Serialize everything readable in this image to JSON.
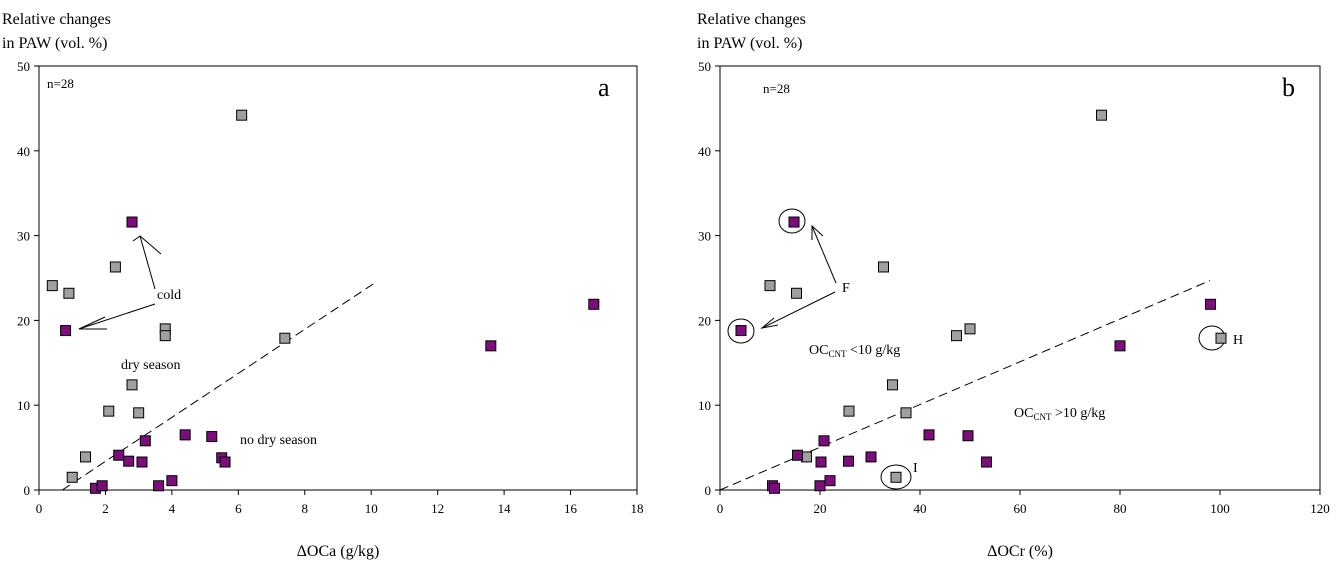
{
  "chart_data": [
    {
      "type": "scatter",
      "panel_letter": "a",
      "n_label": "n=28",
      "ylabel_lines": [
        "Relative changes",
        "in PAW (vol. %)"
      ],
      "xlabel": "ΔOCa (g/kg)",
      "xlim": [
        0,
        18
      ],
      "ylim": [
        0,
        50
      ],
      "xticks": [
        0,
        2,
        4,
        6,
        8,
        10,
        12,
        14,
        16,
        18
      ],
      "yticks": [
        0,
        10,
        20,
        30,
        40,
        50
      ],
      "grid": false,
      "series": [
        {
          "color": "#a0a0a0",
          "points": [
            [
              0.4,
              24.1
            ],
            [
              0.9,
              23.2
            ],
            [
              1.0,
              1.5
            ],
            [
              1.4,
              3.9
            ],
            [
              2.1,
              9.3
            ],
            [
              2.3,
              26.3
            ],
            [
              2.8,
              12.4
            ],
            [
              3.0,
              9.1
            ],
            [
              3.8,
              19.0
            ],
            [
              3.8,
              18.2
            ],
            [
              6.1,
              44.2
            ],
            [
              7.4,
              17.9
            ]
          ]
        },
        {
          "color": "#7b0e7b",
          "points": [
            [
              0.8,
              18.8
            ],
            [
              1.7,
              0.2
            ],
            [
              1.9,
              0.5
            ],
            [
              2.4,
              4.1
            ],
            [
              2.7,
              3.4
            ],
            [
              2.8,
              31.6
            ],
            [
              3.1,
              3.3
            ],
            [
              3.2,
              5.8
            ],
            [
              3.6,
              0.5
            ],
            [
              4.0,
              1.1
            ],
            [
              4.4,
              6.5
            ],
            [
              5.2,
              6.3
            ],
            [
              5.5,
              3.8
            ],
            [
              5.6,
              3.3
            ],
            [
              13.6,
              17.0
            ],
            [
              16.7,
              21.9
            ]
          ]
        }
      ],
      "dashed_line": [
        [
          0.7,
          0.0
        ],
        [
          10.1,
          24.4
        ]
      ],
      "annotations": [
        "cold",
        "dry season",
        "no dry season"
      ]
    },
    {
      "type": "scatter",
      "panel_letter": "b",
      "n_label": "n=28",
      "ylabel_lines": [
        "Relative changes",
        "in PAW (vol. %)"
      ],
      "xlabel": "ΔOCr (%)",
      "xlim": [
        0,
        120
      ],
      "ylim": [
        0,
        50
      ],
      "xticks": [
        0,
        20,
        40,
        60,
        80,
        100,
        120
      ],
      "yticks": [
        0,
        10,
        20,
        30,
        40,
        50
      ],
      "grid": false,
      "series": [
        {
          "color": "#a0a0a0",
          "points": [
            [
              10.0,
              24.1
            ],
            [
              15.3,
              23.2
            ],
            [
              17.3,
              3.9
            ],
            [
              25.8,
              9.3
            ],
            [
              32.7,
              26.3
            ],
            [
              34.5,
              12.4
            ],
            [
              35.2,
              1.5
            ],
            [
              37.2,
              9.1
            ],
            [
              47.3,
              18.2
            ],
            [
              50.0,
              19.0
            ],
            [
              76.3,
              44.2
            ],
            [
              100.2,
              17.9
            ]
          ]
        },
        {
          "color": "#7b0e7b",
          "points": [
            [
              4.2,
              18.8
            ],
            [
              10.5,
              0.5
            ],
            [
              10.9,
              0.2
            ],
            [
              14.8,
              31.6
            ],
            [
              15.5,
              4.1
            ],
            [
              20.0,
              0.5
            ],
            [
              20.2,
              3.3
            ],
            [
              20.8,
              5.8
            ],
            [
              22.0,
              1.1
            ],
            [
              25.7,
              3.4
            ],
            [
              30.2,
              3.9
            ],
            [
              41.8,
              6.5
            ],
            [
              49.6,
              6.4
            ],
            [
              53.3,
              3.3
            ],
            [
              80.0,
              17.0
            ],
            [
              98.1,
              21.9
            ]
          ]
        }
      ],
      "dashed_line": [
        [
          0.0,
          0.0
        ],
        [
          98.0,
          24.7
        ]
      ],
      "annotations": [
        "F",
        "H",
        "I"
      ],
      "region_labels": {
        "upper": {
          "main": "OC",
          "sub": "CNT",
          "rest": " <10 g/kg"
        },
        "lower": {
          "main": "OC",
          "sub": "CNT",
          "rest": " >10 g/kg"
        }
      }
    }
  ]
}
